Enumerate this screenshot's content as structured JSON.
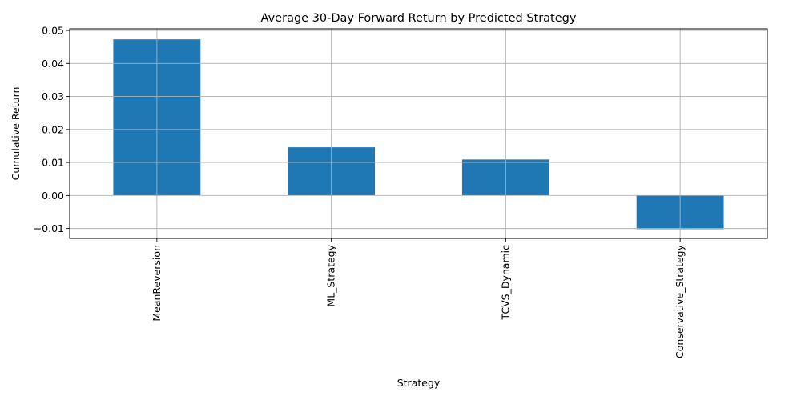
{
  "chart_data": {
    "type": "bar",
    "title": "Average 30-Day Forward Return by Predicted Strategy",
    "xlabel": "Strategy",
    "ylabel": "Cumulative Return",
    "categories": [
      "MeanReversion",
      "ML_Strategy",
      "TCVS_Dynamic",
      "Conservative_Strategy"
    ],
    "values": [
      0.0473,
      0.0146,
      0.0109,
      -0.0102
    ],
    "ylim": [
      -0.013,
      0.0505
    ],
    "yticks": [
      -0.01,
      0.0,
      0.01,
      0.02,
      0.03,
      0.04,
      0.05
    ],
    "ytick_labels": [
      "−0.01",
      "0.00",
      "0.01",
      "0.02",
      "0.03",
      "0.04",
      "0.05"
    ],
    "grid": true,
    "legend": "none",
    "bar_color": "#1f77b4"
  }
}
